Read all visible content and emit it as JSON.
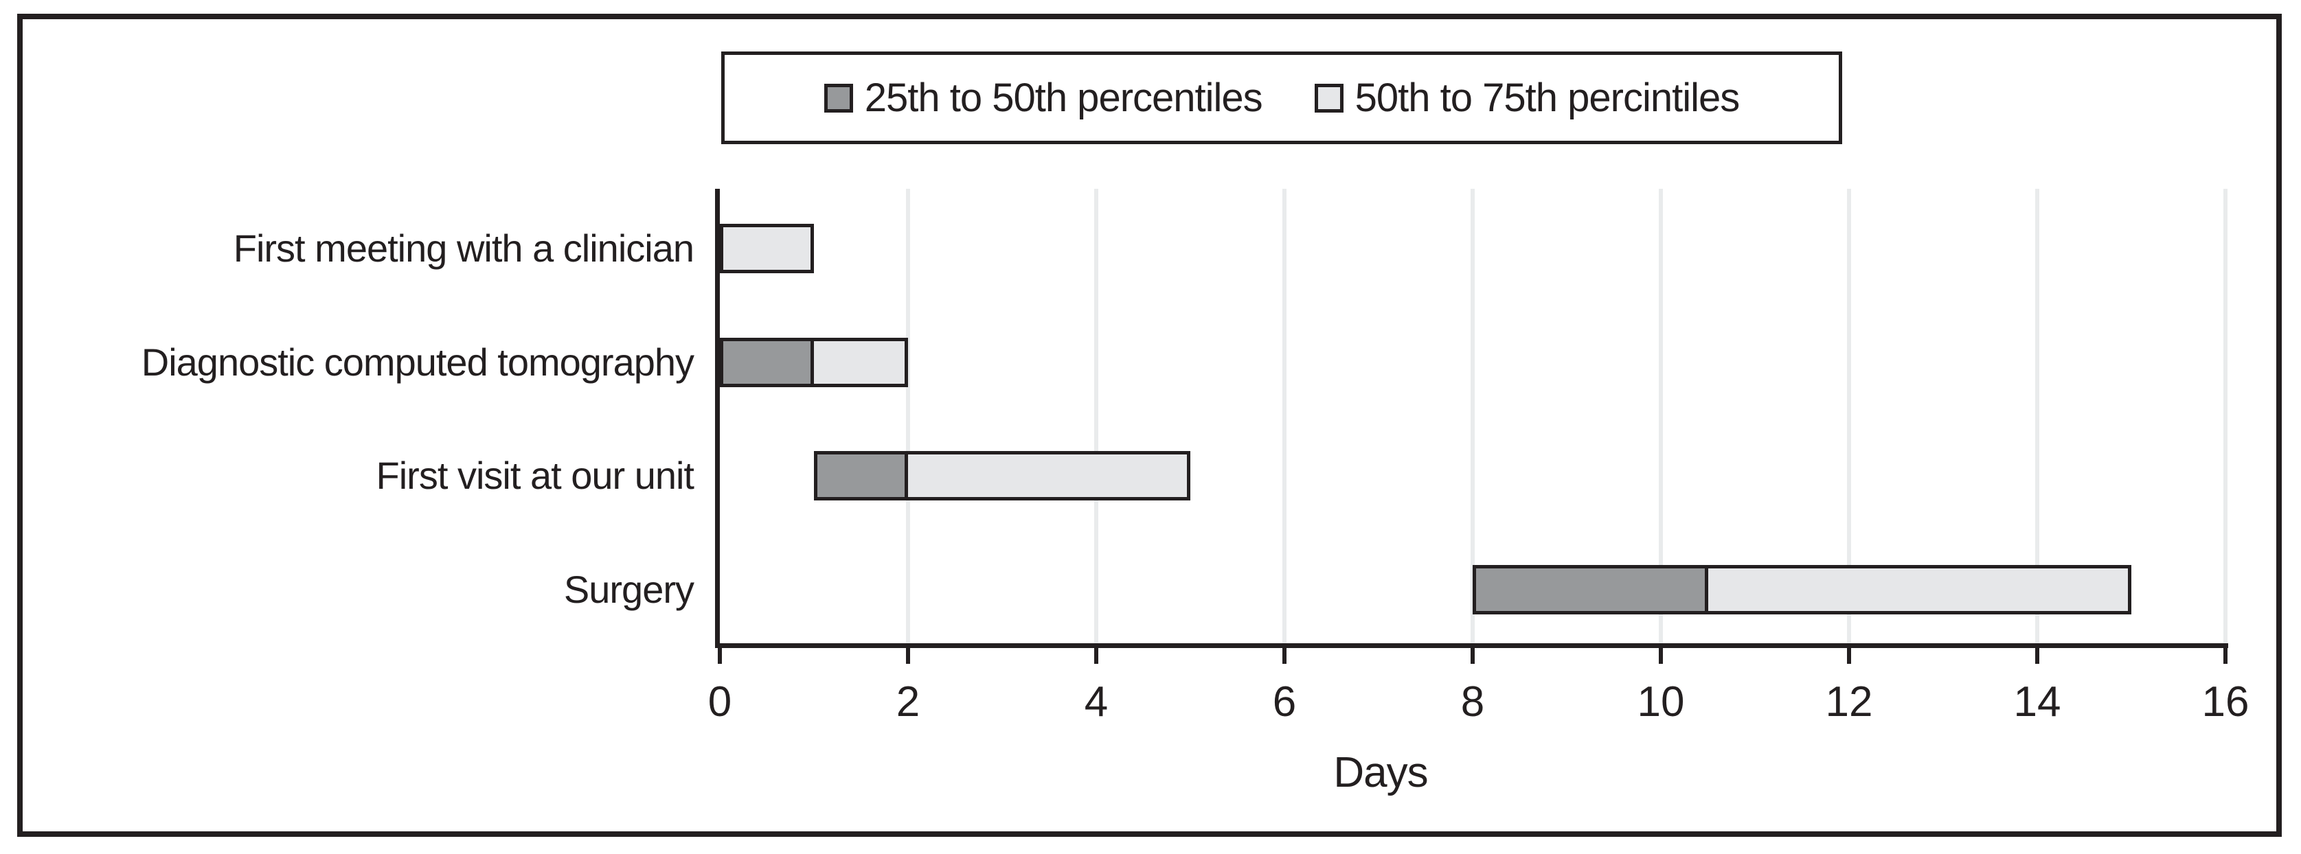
{
  "figure": {
    "background": "#ffffff",
    "frame_color": "#231f20",
    "text_color": "#231f20",
    "gridline_color": "#e9ebec"
  },
  "chart_data": {
    "type": "bar",
    "orientation": "horizontal",
    "stacked": true,
    "title": "",
    "xlabel": "Days",
    "ylabel": "",
    "xlim": [
      0,
      16
    ],
    "xticks": [
      0,
      2,
      4,
      6,
      8,
      10,
      12,
      14,
      16
    ],
    "grid": "vertical",
    "legend_position": "top-center",
    "categories": [
      "First meeting with a clinician",
      "Diagnostic computed tomography",
      "First visit at our unit",
      "Surgery"
    ],
    "series": [
      {
        "name": "25th to 50th percentiles",
        "color": "#97999b",
        "ranges": [
          [
            0,
            0
          ],
          [
            0,
            1
          ],
          [
            1,
            2
          ],
          [
            8,
            10.5
          ]
        ]
      },
      {
        "name": "50th to 75th percintiles",
        "color": "#e6e7e9",
        "ranges": [
          [
            0,
            1
          ],
          [
            1,
            2
          ],
          [
            2,
            5
          ],
          [
            10.5,
            15
          ]
        ]
      }
    ],
    "percentiles_days": {
      "First meeting with a clinician": {
        "p25": 0,
        "p50": 0,
        "p75": 1
      },
      "Diagnostic computed tomography": {
        "p25": 0,
        "p50": 1,
        "p75": 2
      },
      "First visit at our unit": {
        "p25": 1,
        "p50": 2,
        "p75": 5
      },
      "Surgery": {
        "p25": 8,
        "p50": 10.5,
        "p75": 15
      }
    }
  }
}
